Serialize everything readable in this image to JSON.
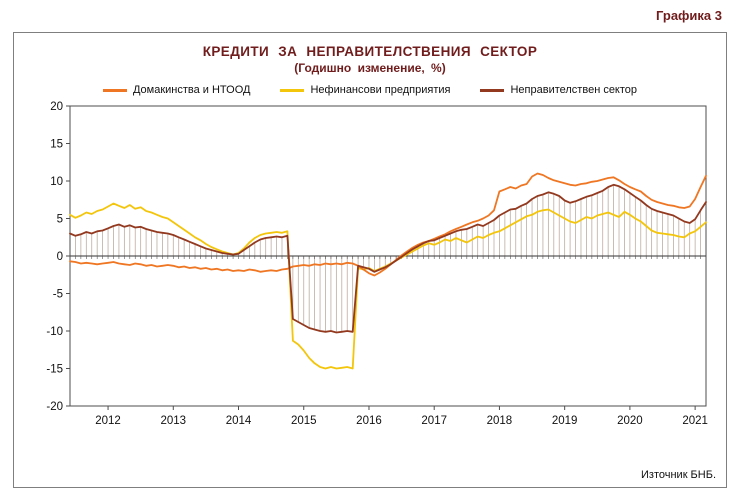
{
  "figure_label": "Графика 3",
  "chart_data": {
    "type": "line",
    "title": "КРЕДИТИ ЗА НЕПРАВИТЕЛСТВЕНИЯ СЕКТОР",
    "subtitle": "(Годишно изменение, %)",
    "source": "Източник БНБ.",
    "frequency": "monthly",
    "x_start": "2011-06",
    "x_end": "2021-03",
    "ylim": [
      -20,
      20
    ],
    "y_tick_step": 5,
    "y_tick_labels": [
      "20",
      "15",
      "10",
      "5",
      "0",
      "-5",
      "-10",
      "-15",
      "-20"
    ],
    "x_tick_labels": [
      "2012",
      "2013",
      "2014",
      "2015",
      "2016",
      "2017",
      "2018",
      "2019",
      "2020",
      "2021"
    ],
    "x_tick_indices": [
      7,
      19,
      31,
      43,
      55,
      67,
      79,
      91,
      103,
      115
    ],
    "grid": false,
    "legend_position": "top",
    "dropline_color": "#A89080",
    "draw_order": [
      1,
      0,
      2
    ],
    "series": [
      {
        "name": "Домакинства и НТООД",
        "color": "#EF7622",
        "values": [
          -0.7,
          -0.8,
          -1.0,
          -0.9,
          -1.0,
          -1.1,
          -1.0,
          -0.9,
          -0.8,
          -1.0,
          -1.1,
          -1.2,
          -1.0,
          -1.1,
          -1.3,
          -1.2,
          -1.4,
          -1.3,
          -1.2,
          -1.3,
          -1.5,
          -1.4,
          -1.6,
          -1.5,
          -1.7,
          -1.6,
          -1.8,
          -1.7,
          -1.9,
          -1.8,
          -2.0,
          -1.9,
          -2.0,
          -1.8,
          -1.9,
          -2.1,
          -2.0,
          -1.9,
          -2.0,
          -1.8,
          -1.7,
          -1.4,
          -1.3,
          -1.2,
          -1.3,
          -1.1,
          -1.2,
          -1.0,
          -1.1,
          -1.0,
          -1.1,
          -0.9,
          -1.0,
          -1.3,
          -1.8,
          -2.3,
          -2.6,
          -2.2,
          -1.7,
          -1.1,
          -0.5,
          0.1,
          0.6,
          1.1,
          1.5,
          1.8,
          2.0,
          2.3,
          2.6,
          2.9,
          3.3,
          3.6,
          3.9,
          4.2,
          4.5,
          4.7,
          5.0,
          5.4,
          6.1,
          8.6,
          8.9,
          9.2,
          9.0,
          9.4,
          9.6,
          10.6,
          11.0,
          10.8,
          10.4,
          10.1,
          9.9,
          9.7,
          9.5,
          9.4,
          9.6,
          9.7,
          9.9,
          10.0,
          10.2,
          10.4,
          10.5,
          10.1,
          9.6,
          9.2,
          8.9,
          8.6,
          8.0,
          7.5,
          7.2,
          7.0,
          6.8,
          6.7,
          6.5,
          6.4,
          6.6,
          7.6,
          9.2,
          10.7
        ]
      },
      {
        "name": "Нефинансови предприятия",
        "color": "#F3C50B",
        "values": [
          5.5,
          5.1,
          5.4,
          5.8,
          5.6,
          6.0,
          6.2,
          6.6,
          7.0,
          6.7,
          6.4,
          6.8,
          6.3,
          6.5,
          6.0,
          5.8,
          5.5,
          5.2,
          5.0,
          4.5,
          4.0,
          3.5,
          3.0,
          2.5,
          2.1,
          1.6,
          1.2,
          0.9,
          0.6,
          0.4,
          0.2,
          0.4,
          1.0,
          1.8,
          2.4,
          2.8,
          3.0,
          3.1,
          3.2,
          3.1,
          3.3,
          -11.3,
          -11.8,
          -12.6,
          -13.6,
          -14.3,
          -14.8,
          -15.0,
          -14.8,
          -15.0,
          -14.9,
          -14.8,
          -15.0,
          -1.6,
          -1.8,
          -1.6,
          -2.0,
          -1.7,
          -1.4,
          -1.0,
          -0.6,
          -0.2,
          0.2,
          0.6,
          1.0,
          1.4,
          1.7,
          1.5,
          1.8,
          2.2,
          2.0,
          2.4,
          2.1,
          1.8,
          2.2,
          2.6,
          2.4,
          2.8,
          3.1,
          3.3,
          3.7,
          4.1,
          4.5,
          4.9,
          5.3,
          5.5,
          5.9,
          6.1,
          6.2,
          5.8,
          5.4,
          5.0,
          4.6,
          4.4,
          4.8,
          5.2,
          5.0,
          5.4,
          5.6,
          5.8,
          5.5,
          5.2,
          5.9,
          5.5,
          5.0,
          4.6,
          4.0,
          3.4,
          3.1,
          3.0,
          2.9,
          2.8,
          2.6,
          2.5,
          3.0,
          3.3,
          3.9,
          4.5
        ]
      },
      {
        "name": "Неправителствен сектор",
        "color": "#92391F",
        "style": "line_with_droplines",
        "values": [
          3.0,
          2.7,
          2.9,
          3.2,
          3.0,
          3.3,
          3.4,
          3.7,
          4.0,
          4.2,
          3.9,
          4.1,
          3.8,
          3.9,
          3.6,
          3.4,
          3.2,
          3.1,
          3.0,
          2.8,
          2.5,
          2.2,
          1.9,
          1.6,
          1.3,
          1.0,
          0.8,
          0.6,
          0.4,
          0.3,
          0.2,
          0.3,
          0.8,
          1.3,
          1.8,
          2.2,
          2.4,
          2.5,
          2.6,
          2.5,
          2.7,
          -8.4,
          -8.8,
          -9.2,
          -9.6,
          -9.8,
          -10.0,
          -10.1,
          -10.0,
          -10.2,
          -10.1,
          -10.0,
          -10.1,
          -1.3,
          -1.5,
          -1.7,
          -2.1,
          -1.8,
          -1.5,
          -1.1,
          -0.6,
          -0.1,
          0.4,
          0.9,
          1.3,
          1.7,
          2.0,
          2.1,
          2.4,
          2.7,
          3.0,
          3.3,
          3.5,
          3.6,
          3.9,
          4.2,
          4.0,
          4.4,
          4.8,
          5.4,
          5.8,
          6.2,
          6.3,
          6.7,
          7.0,
          7.6,
          8.0,
          8.2,
          8.5,
          8.3,
          8.0,
          7.4,
          7.1,
          7.3,
          7.6,
          7.9,
          8.1,
          8.4,
          8.7,
          9.2,
          9.5,
          9.3,
          8.9,
          8.4,
          7.9,
          7.4,
          6.8,
          6.3,
          6.0,
          5.8,
          5.6,
          5.4,
          5.0,
          4.6,
          4.4,
          4.9,
          6.1,
          7.2
        ]
      }
    ]
  }
}
